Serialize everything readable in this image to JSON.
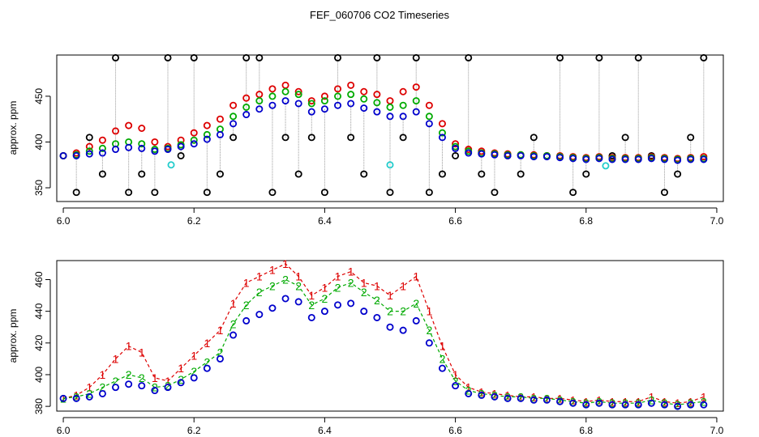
{
  "colors": {
    "raw": "#000000",
    "series1": "#dd0000",
    "series2": "#00aa00",
    "series3": "#0000cc",
    "flag": "#22cccc",
    "connector": "#999999"
  },
  "chart_data": [
    {
      "type": "scatter",
      "title": "FEF_060706  CO2 Timeseries",
      "xlabel": "",
      "ylabel": "approx. ppm",
      "xlim": [
        5.99,
        7.01
      ],
      "ylim": [
        335,
        495
      ],
      "xticks": [
        "6.0",
        "6.2",
        "6.4",
        "6.6",
        "6.8",
        "7.0"
      ],
      "xtick_values": [
        6.0,
        6.2,
        6.4,
        6.6,
        6.8,
        7.0
      ],
      "yticks": [
        "350",
        "400",
        "450"
      ],
      "ytick_values": [
        350,
        400,
        450
      ],
      "marker": "circle",
      "x": [
        6.0,
        6.02,
        6.04,
        6.06,
        6.08,
        6.1,
        6.12,
        6.14,
        6.16,
        6.18,
        6.2,
        6.22,
        6.24,
        6.26,
        6.28,
        6.3,
        6.32,
        6.34,
        6.36,
        6.38,
        6.4,
        6.42,
        6.44,
        6.46,
        6.48,
        6.5,
        6.52,
        6.54,
        6.56,
        6.58,
        6.6,
        6.62,
        6.64,
        6.66,
        6.68,
        6.7,
        6.72,
        6.74,
        6.76,
        6.78,
        6.8,
        6.82,
        6.84,
        6.86,
        6.88,
        6.9,
        6.92,
        6.94,
        6.96,
        6.98
      ],
      "series": [
        {
          "name": "raw",
          "values": [
            385,
            345,
            405,
            365,
            492,
            345,
            365,
            345,
            492,
            385,
            492,
            345,
            365,
            405,
            492,
            492,
            345,
            405,
            365,
            405,
            345,
            492,
            405,
            365,
            492,
            345,
            405,
            492,
            345,
            365,
            385,
            492,
            365,
            345,
            385,
            365,
            405,
            385,
            492,
            345,
            365,
            492,
            385,
            405,
            492,
            385,
            345,
            365,
            405,
            492
          ]
        },
        {
          "name": "1",
          "values": [
            385,
            388,
            395,
            402,
            412,
            418,
            415,
            400,
            395,
            402,
            410,
            418,
            425,
            440,
            448,
            452,
            458,
            462,
            455,
            445,
            450,
            458,
            462,
            455,
            452,
            445,
            455,
            460,
            440,
            420,
            398,
            392,
            390,
            388,
            387,
            386,
            386,
            385,
            385,
            384,
            383,
            384,
            383,
            383,
            383,
            384,
            383,
            382,
            383,
            384
          ]
        },
        {
          "name": "2",
          "values": [
            385,
            386,
            390,
            393,
            398,
            400,
            398,
            392,
            393,
            397,
            402,
            408,
            414,
            428,
            438,
            445,
            450,
            455,
            452,
            442,
            445,
            450,
            452,
            447,
            443,
            438,
            440,
            445,
            428,
            410,
            395,
            390,
            388,
            387,
            386,
            386,
            385,
            385,
            384,
            383,
            382,
            383,
            382,
            382,
            382,
            383,
            382,
            381,
            382,
            382
          ]
        },
        {
          "name": "3",
          "values": [
            385,
            385,
            387,
            388,
            392,
            394,
            393,
            390,
            392,
            395,
            398,
            403,
            408,
            420,
            430,
            436,
            440,
            445,
            442,
            433,
            436,
            440,
            442,
            437,
            433,
            428,
            428,
            433,
            420,
            405,
            393,
            388,
            387,
            386,
            385,
            385,
            384,
            384,
            383,
            382,
            381,
            382,
            381,
            381,
            381,
            382,
            381,
            380,
            381,
            381
          ]
        }
      ],
      "flagged": {
        "x": [
          6.165,
          6.5,
          6.83
        ],
        "values": [
          375,
          375,
          374
        ]
      }
    },
    {
      "type": "scatter",
      "title": "",
      "xlabel": "",
      "ylabel": "approx. ppm",
      "xlim": [
        5.99,
        7.01
      ],
      "ylim": [
        377,
        472
      ],
      "xticks": [
        "6.0",
        "6.2",
        "6.4",
        "6.6",
        "6.8",
        "7.0"
      ],
      "xtick_values": [
        6.0,
        6.2,
        6.4,
        6.6,
        6.8,
        7.0
      ],
      "yticks": [
        "380",
        "400",
        "420",
        "440",
        "460"
      ],
      "ytick_values": [
        380,
        400,
        420,
        440,
        460
      ],
      "marker": "number",
      "x": [
        6.0,
        6.02,
        6.04,
        6.06,
        6.08,
        6.1,
        6.12,
        6.14,
        6.16,
        6.18,
        6.2,
        6.22,
        6.24,
        6.26,
        6.28,
        6.3,
        6.32,
        6.34,
        6.36,
        6.38,
        6.4,
        6.42,
        6.44,
        6.46,
        6.48,
        6.5,
        6.52,
        6.54,
        6.56,
        6.58,
        6.6,
        6.62,
        6.64,
        6.66,
        6.68,
        6.7,
        6.72,
        6.74,
        6.76,
        6.78,
        6.8,
        6.82,
        6.84,
        6.86,
        6.88,
        6.9,
        6.92,
        6.94,
        6.96,
        6.98
      ],
      "series": [
        {
          "name": "1",
          "label": "1",
          "values": [
            385,
            387,
            392,
            400,
            410,
            418,
            414,
            398,
            396,
            404,
            412,
            420,
            428,
            445,
            458,
            462,
            466,
            470,
            462,
            450,
            455,
            462,
            465,
            458,
            456,
            450,
            456,
            462,
            440,
            418,
            400,
            392,
            389,
            388,
            387,
            386,
            386,
            385,
            385,
            384,
            383,
            384,
            383,
            383,
            383,
            386,
            383,
            382,
            383,
            386
          ]
        },
        {
          "name": "2",
          "label": "2",
          "values": [
            385,
            386,
            388,
            392,
            396,
            400,
            398,
            392,
            393,
            397,
            402,
            408,
            414,
            432,
            444,
            452,
            456,
            460,
            456,
            444,
            448,
            455,
            458,
            452,
            447,
            440,
            440,
            445,
            428,
            410,
            396,
            390,
            388,
            387,
            386,
            386,
            385,
            385,
            384,
            383,
            382,
            383,
            382,
            382,
            382,
            384,
            382,
            381,
            382,
            383
          ]
        },
        {
          "name": "3",
          "label": "3",
          "values": [
            385,
            385,
            386,
            388,
            392,
            394,
            393,
            390,
            392,
            395,
            398,
            404,
            410,
            425,
            434,
            438,
            442,
            448,
            446,
            436,
            440,
            444,
            445,
            440,
            436,
            430,
            428,
            434,
            420,
            404,
            393,
            388,
            387,
            386,
            385,
            385,
            384,
            384,
            383,
            382,
            381,
            382,
            381,
            381,
            381,
            382,
            381,
            380,
            381,
            381
          ]
        }
      ]
    }
  ]
}
